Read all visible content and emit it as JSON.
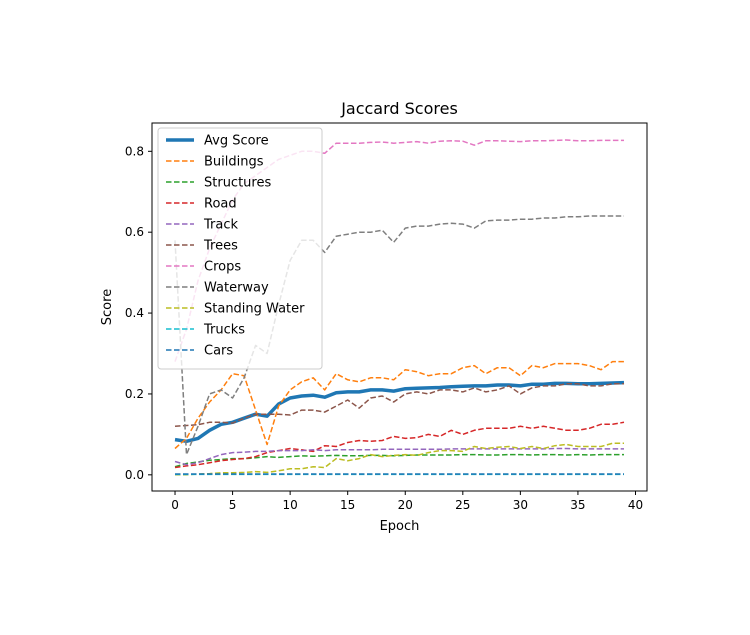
{
  "chart_data": {
    "type": "line",
    "title": "Jaccard Scores",
    "xlabel": "Epoch",
    "ylabel": "Score",
    "xlim": [
      -2,
      41
    ],
    "ylim": [
      -0.04,
      0.87
    ],
    "xticks": [
      0,
      5,
      10,
      15,
      20,
      25,
      30,
      35,
      40
    ],
    "xtick_labels": [
      "0",
      "5",
      "10",
      "15",
      "20",
      "25",
      "30",
      "35",
      "40"
    ],
    "yticks": [
      0.0,
      0.2,
      0.4,
      0.6,
      0.8
    ],
    "ytick_labels": [
      "0.0",
      "0.2",
      "0.4",
      "0.6",
      "0.8"
    ],
    "legend_position": "upper-left",
    "grid": false,
    "x": [
      0,
      1,
      2,
      3,
      4,
      5,
      6,
      7,
      8,
      9,
      10,
      11,
      12,
      13,
      14,
      15,
      16,
      17,
      18,
      19,
      20,
      21,
      22,
      23,
      24,
      25,
      26,
      27,
      28,
      29,
      30,
      31,
      32,
      33,
      34,
      35,
      36,
      37,
      38,
      39
    ],
    "series": [
      {
        "name": "Avg Score",
        "color": "#1f77b4",
        "style": "solid",
        "width": 3.5,
        "values": [
          0.087,
          0.083,
          0.09,
          0.11,
          0.125,
          0.13,
          0.14,
          0.15,
          0.145,
          0.175,
          0.19,
          0.195,
          0.197,
          0.192,
          0.203,
          0.205,
          0.205,
          0.21,
          0.21,
          0.207,
          0.213,
          0.214,
          0.215,
          0.216,
          0.218,
          0.219,
          0.22,
          0.22,
          0.222,
          0.222,
          0.22,
          0.224,
          0.224,
          0.226,
          0.226,
          0.225,
          0.225,
          0.226,
          0.227,
          0.228
        ]
      },
      {
        "name": "Buildings",
        "color": "#ff7f0e",
        "style": "dashed",
        "width": 1.5,
        "values": [
          0.065,
          0.09,
          0.14,
          0.18,
          0.21,
          0.25,
          0.245,
          0.16,
          0.075,
          0.17,
          0.21,
          0.23,
          0.24,
          0.21,
          0.25,
          0.235,
          0.23,
          0.24,
          0.24,
          0.235,
          0.26,
          0.255,
          0.245,
          0.25,
          0.25,
          0.265,
          0.27,
          0.25,
          0.265,
          0.265,
          0.245,
          0.27,
          0.265,
          0.275,
          0.275,
          0.275,
          0.27,
          0.26,
          0.28,
          0.28
        ]
      },
      {
        "name": "Structures",
        "color": "#2ca02c",
        "style": "dashed",
        "width": 1.5,
        "values": [
          0.02,
          0.028,
          0.032,
          0.036,
          0.038,
          0.04,
          0.04,
          0.042,
          0.045,
          0.043,
          0.045,
          0.047,
          0.046,
          0.047,
          0.048,
          0.047,
          0.047,
          0.048,
          0.048,
          0.047,
          0.048,
          0.049,
          0.049,
          0.049,
          0.049,
          0.05,
          0.05,
          0.049,
          0.049,
          0.05,
          0.05,
          0.049,
          0.05,
          0.05,
          0.049,
          0.05,
          0.049,
          0.05,
          0.05,
          0.05
        ]
      },
      {
        "name": "Road",
        "color": "#d62728",
        "style": "dashed",
        "width": 1.5,
        "values": [
          0.018,
          0.022,
          0.025,
          0.03,
          0.035,
          0.038,
          0.04,
          0.045,
          0.055,
          0.06,
          0.065,
          0.062,
          0.058,
          0.072,
          0.07,
          0.08,
          0.085,
          0.083,
          0.085,
          0.095,
          0.09,
          0.092,
          0.1,
          0.095,
          0.11,
          0.1,
          0.11,
          0.115,
          0.115,
          0.115,
          0.12,
          0.115,
          0.12,
          0.115,
          0.11,
          0.11,
          0.115,
          0.125,
          0.125,
          0.13
        ]
      },
      {
        "name": "Track",
        "color": "#9467bd",
        "style": "dashed",
        "width": 1.5,
        "values": [
          0.033,
          0.025,
          0.03,
          0.04,
          0.05,
          0.055,
          0.056,
          0.058,
          0.058,
          0.06,
          0.06,
          0.06,
          0.062,
          0.06,
          0.062,
          0.062,
          0.062,
          0.062,
          0.063,
          0.063,
          0.063,
          0.063,
          0.063,
          0.063,
          0.064,
          0.064,
          0.064,
          0.064,
          0.064,
          0.064,
          0.064,
          0.064,
          0.064,
          0.065,
          0.065,
          0.064,
          0.064,
          0.064,
          0.064,
          0.064
        ]
      },
      {
        "name": "Trees",
        "color": "#8c564b",
        "style": "dashed",
        "width": 1.5,
        "values": [
          0.12,
          0.122,
          0.124,
          0.13,
          0.13,
          0.128,
          0.14,
          0.15,
          0.15,
          0.15,
          0.148,
          0.16,
          0.16,
          0.155,
          0.17,
          0.185,
          0.165,
          0.19,
          0.195,
          0.18,
          0.2,
          0.205,
          0.2,
          0.21,
          0.21,
          0.205,
          0.215,
          0.205,
          0.21,
          0.22,
          0.2,
          0.215,
          0.22,
          0.22,
          0.225,
          0.225,
          0.22,
          0.22,
          0.225,
          0.225
        ]
      },
      {
        "name": "Crops",
        "color": "#e377c2",
        "style": "dashed",
        "width": 1.5,
        "values": [
          0.28,
          0.36,
          0.48,
          0.56,
          0.62,
          0.68,
          0.72,
          0.74,
          0.76,
          0.78,
          0.79,
          0.8,
          0.8,
          0.795,
          0.82,
          0.82,
          0.82,
          0.822,
          0.823,
          0.82,
          0.822,
          0.824,
          0.82,
          0.825,
          0.826,
          0.825,
          0.815,
          0.826,
          0.826,
          0.825,
          0.824,
          0.826,
          0.826,
          0.827,
          0.828,
          0.826,
          0.826,
          0.827,
          0.827,
          0.827
        ]
      },
      {
        "name": "Waterway",
        "color": "#7f7f7f",
        "style": "dashed",
        "width": 1.5,
        "values": [
          0.58,
          0.05,
          0.12,
          0.2,
          0.21,
          0.19,
          0.24,
          0.32,
          0.3,
          0.42,
          0.53,
          0.58,
          0.58,
          0.55,
          0.59,
          0.595,
          0.6,
          0.6,
          0.605,
          0.575,
          0.61,
          0.615,
          0.615,
          0.62,
          0.622,
          0.62,
          0.61,
          0.628,
          0.63,
          0.63,
          0.632,
          0.632,
          0.635,
          0.635,
          0.638,
          0.638,
          0.64,
          0.64,
          0.64,
          0.64
        ]
      },
      {
        "name": "Standing Water",
        "color": "#bcbd22",
        "style": "dashed",
        "width": 1.5,
        "values": [
          0.0,
          0.0,
          0.002,
          0.003,
          0.005,
          0.005,
          0.006,
          0.008,
          0.006,
          0.01,
          0.015,
          0.015,
          0.02,
          0.018,
          0.04,
          0.035,
          0.04,
          0.05,
          0.045,
          0.048,
          0.05,
          0.048,
          0.055,
          0.06,
          0.06,
          0.058,
          0.07,
          0.065,
          0.068,
          0.07,
          0.065,
          0.07,
          0.065,
          0.072,
          0.075,
          0.07,
          0.07,
          0.07,
          0.078,
          0.078
        ]
      },
      {
        "name": "Trucks",
        "color": "#17becf",
        "style": "dashed",
        "width": 1.5,
        "values": [
          0.001,
          0.001,
          0.001,
          0.001,
          0.001,
          0.001,
          0.001,
          0.001,
          0.001,
          0.001,
          0.001,
          0.001,
          0.001,
          0.001,
          0.001,
          0.001,
          0.001,
          0.001,
          0.001,
          0.001,
          0.001,
          0.001,
          0.001,
          0.001,
          0.001,
          0.001,
          0.001,
          0.001,
          0.001,
          0.001,
          0.001,
          0.001,
          0.001,
          0.001,
          0.001,
          0.001,
          0.001,
          0.001,
          0.001,
          0.001
        ]
      },
      {
        "name": "Cars",
        "color": "#1f77b4",
        "style": "dashed",
        "width": 1.5,
        "values": [
          0.002,
          0.002,
          0.002,
          0.002,
          0.002,
          0.002,
          0.002,
          0.002,
          0.002,
          0.002,
          0.002,
          0.002,
          0.002,
          0.002,
          0.002,
          0.002,
          0.002,
          0.002,
          0.002,
          0.002,
          0.002,
          0.002,
          0.002,
          0.002,
          0.002,
          0.002,
          0.002,
          0.002,
          0.002,
          0.002,
          0.002,
          0.002,
          0.002,
          0.002,
          0.002,
          0.002,
          0.002,
          0.002,
          0.002,
          0.002
        ]
      }
    ]
  }
}
